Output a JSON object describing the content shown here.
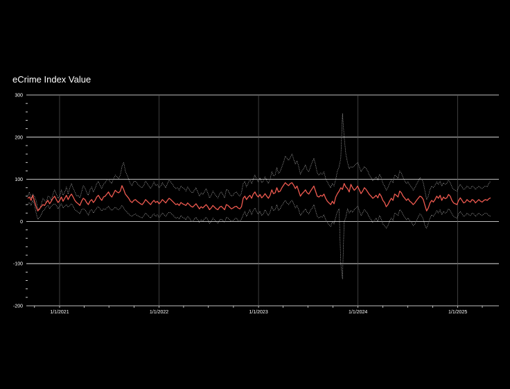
{
  "chart_data": {
    "type": "line",
    "title": "eCrime Index Value",
    "ylim": [
      -200,
      300
    ],
    "y_ticks": [
      300,
      200,
      100,
      0,
      -100,
      -200
    ],
    "x_ticks": [
      "1/1/2021",
      "1/1/2022",
      "1/1/2023",
      "1/1/2024",
      "1/1/2025"
    ],
    "grid": true,
    "x_start": "2020-09-01",
    "x_end": "2025-06-01",
    "series": [
      {
        "role": "index",
        "color": "#f05a50",
        "values": [
          55,
          58,
          50,
          62,
          48,
          35,
          25,
          30,
          35,
          40,
          38,
          45,
          50,
          42,
          48,
          55,
          60,
          52,
          45,
          50,
          58,
          48,
          55,
          62,
          52,
          60,
          65,
          58,
          50,
          45,
          42,
          38,
          48,
          55,
          52,
          45,
          40,
          48,
          52,
          45,
          50,
          58,
          62,
          55,
          50,
          58,
          60,
          65,
          70,
          62,
          58,
          66,
          74,
          70,
          68,
          72,
          85,
          76,
          65,
          60,
          55,
          48,
          45,
          50,
          52,
          48,
          45,
          42,
          40,
          45,
          52,
          48,
          44,
          40,
          46,
          50,
          45,
          48,
          42,
          46,
          52,
          48,
          44,
          50,
          55,
          52,
          48,
          44,
          40,
          42,
          38,
          45,
          42,
          40,
          38,
          44,
          40,
          36,
          34,
          38,
          42,
          36,
          30,
          35,
          32,
          36,
          40,
          35,
          28,
          32,
          38,
          34,
          30,
          28,
          34,
          36,
          32,
          28,
          40,
          38,
          34,
          30,
          32,
          35,
          36,
          32,
          30,
          35,
          55,
          60,
          52,
          58,
          62,
          55,
          65,
          70,
          62,
          58,
          64,
          56,
          60,
          66,
          60,
          55,
          62,
          75,
          66,
          68,
          80,
          70,
          72,
          80,
          86,
          92,
          88,
          85,
          90,
          92,
          86,
          78,
          84,
          72,
          60,
          66,
          70,
          75,
          68,
          65,
          72,
          78,
          84,
          72,
          60,
          58,
          62,
          60,
          65,
          55,
          48,
          44,
          40,
          48,
          42,
          58,
          66,
          72,
          80,
          76,
          90,
          82,
          78,
          70,
          88,
          80,
          74,
          78,
          84,
          75,
          66,
          72,
          80,
          76,
          70,
          64,
          60,
          55,
          58,
          62,
          56,
          66,
          60,
          50,
          45,
          35,
          40,
          48,
          55,
          50,
          65,
          62,
          58,
          72,
          68,
          60,
          55,
          50,
          54,
          48,
          45,
          40,
          44,
          50,
          55,
          60,
          58,
          52,
          38,
          25,
          32,
          44,
          50,
          46,
          52,
          60,
          55,
          62,
          50,
          58,
          54,
          56,
          64,
          60,
          50,
          44,
          42,
          40,
          50,
          56,
          50,
          44,
          46,
          52,
          48,
          46,
          52,
          50,
          44,
          48,
          52,
          48,
          46,
          50,
          52,
          50,
          54,
          56
        ]
      },
      {
        "role": "upper",
        "color": "#b3b3b3",
        "values": [
          60,
          70,
          55,
          65,
          60,
          50,
          30,
          28,
          40,
          55,
          50,
          45,
          60,
          58,
          50,
          65,
          75,
          65,
          55,
          60,
          75,
          62,
          70,
          82,
          65,
          80,
          90,
          78,
          70,
          60,
          62,
          56,
          70,
          85,
          80,
          70,
          62,
          75,
          82,
          70,
          78,
          90,
          95,
          85,
          78,
          88,
          92,
          98,
          100,
          94,
          90,
          102,
          110,
          106,
          102,
          110,
          130,
          140,
          120,
          110,
          100,
          90,
          85,
          95,
          96,
          90,
          86,
          82,
          80,
          86,
          96,
          90,
          84,
          78,
          85,
          94,
          85,
          88,
          80,
          84,
          92,
          86,
          80,
          90,
          98,
          94,
          88,
          82,
          78,
          80,
          74,
          84,
          80,
          78,
          72,
          82,
          76,
          70,
          68,
          74,
          80,
          70,
          60,
          68,
          64,
          70,
          78,
          68,
          56,
          62,
          72,
          66,
          60,
          56,
          66,
          70,
          64,
          56,
          76,
          74,
          66,
          60,
          62,
          68,
          70,
          64,
          60,
          68,
          90,
          95,
          82,
          90,
          100,
          90,
          100,
          110,
          100,
          94,
          104,
          92,
          96,
          106,
          98,
          90,
          100,
          118,
          108,
          110,
          128,
          114,
          118,
          130,
          140,
          155,
          150,
          145,
          152,
          160,
          148,
          136,
          144,
          130,
          112,
          120,
          126,
          134,
          122,
          118,
          130,
          140,
          150,
          135,
          115,
          110,
          115,
          112,
          118,
          102,
          94,
          86,
          80,
          90,
          84,
          100,
          120,
          130,
          150,
          256,
          200,
          160,
          140,
          125,
          130,
          128,
          132,
          136,
          140,
          130,
          118,
          124,
          130,
          126,
          120,
          110,
          104,
          96,
          100,
          106,
          98,
          112,
          104,
          90,
          84,
          74,
          80,
          90,
          98,
          92,
          110,
          108,
          102,
          120,
          114,
          104,
          96,
          90,
          94,
          86,
          82,
          74,
          80,
          88,
          96,
          104,
          100,
          92,
          72,
          52,
          60,
          76,
          84,
          80,
          86,
          94,
          88,
          96,
          84,
          92,
          88,
          90,
          98,
          92,
          82,
          76,
          74,
          72,
          82,
          88,
          82,
          76,
          78,
          84,
          80,
          78,
          84,
          82,
          76,
          80,
          84,
          80,
          78,
          82,
          84,
          82,
          90,
          96
        ]
      },
      {
        "role": "lower",
        "color": "#b3b3b3",
        "values": [
          40,
          45,
          38,
          50,
          40,
          20,
          5,
          10,
          15,
          25,
          28,
          35,
          38,
          30,
          36,
          40,
          42,
          38,
          30,
          36,
          42,
          32,
          36,
          40,
          34,
          38,
          42,
          36,
          28,
          25,
          22,
          18,
          28,
          30,
          28,
          22,
          15,
          25,
          28,
          20,
          26,
          32,
          35,
          30,
          25,
          30,
          28,
          32,
          36,
          30,
          26,
          30,
          34,
          30,
          28,
          32,
          38,
          32,
          26,
          22,
          18,
          14,
          12,
          16,
          18,
          14,
          12,
          10,
          8,
          14,
          20,
          16,
          12,
          8,
          14,
          18,
          12,
          16,
          10,
          14,
          20,
          16,
          12,
          18,
          22,
          20,
          16,
          12,
          8,
          10,
          6,
          14,
          10,
          8,
          4,
          12,
          8,
          2,
          0,
          6,
          10,
          4,
          -2,
          4,
          0,
          6,
          10,
          4,
          -5,
          0,
          8,
          4,
          0,
          -4,
          4,
          6,
          2,
          -2,
          10,
          8,
          4,
          0,
          2,
          6,
          8,
          2,
          0,
          6,
          16,
          24,
          12,
          20,
          28,
          16,
          26,
          32,
          22,
          18,
          24,
          14,
          18,
          28,
          20,
          14,
          22,
          36,
          26,
          28,
          40,
          26,
          30,
          38,
          44,
          50,
          44,
          40,
          46,
          50,
          42,
          32,
          38,
          28,
          14,
          20,
          24,
          30,
          22,
          18,
          26,
          32,
          40,
          26,
          12,
          8,
          12,
          10,
          16,
          4,
          -2,
          -8,
          -12,
          0,
          -6,
          10,
          24,
          30,
          -100,
          -136,
          0,
          10,
          30,
          20,
          26,
          22,
          28,
          32,
          36,
          26,
          14,
          20,
          28,
          24,
          18,
          10,
          4,
          -2,
          2,
          8,
          0,
          14,
          6,
          -6,
          -10,
          -16,
          -10,
          0,
          8,
          2,
          20,
          18,
          14,
          28,
          24,
          16,
          10,
          4,
          8,
          2,
          -2,
          -10,
          -6,
          2,
          10,
          18,
          14,
          6,
          -10,
          -16,
          -4,
          8,
          16,
          12,
          18,
          26,
          20,
          28,
          16,
          24,
          20,
          22,
          30,
          26,
          18,
          12,
          10,
          8,
          18,
          24,
          18,
          12,
          14,
          20,
          16,
          14,
          20,
          18,
          12,
          16,
          20,
          16,
          14,
          18,
          20,
          18,
          14,
          12
        ]
      }
    ]
  }
}
